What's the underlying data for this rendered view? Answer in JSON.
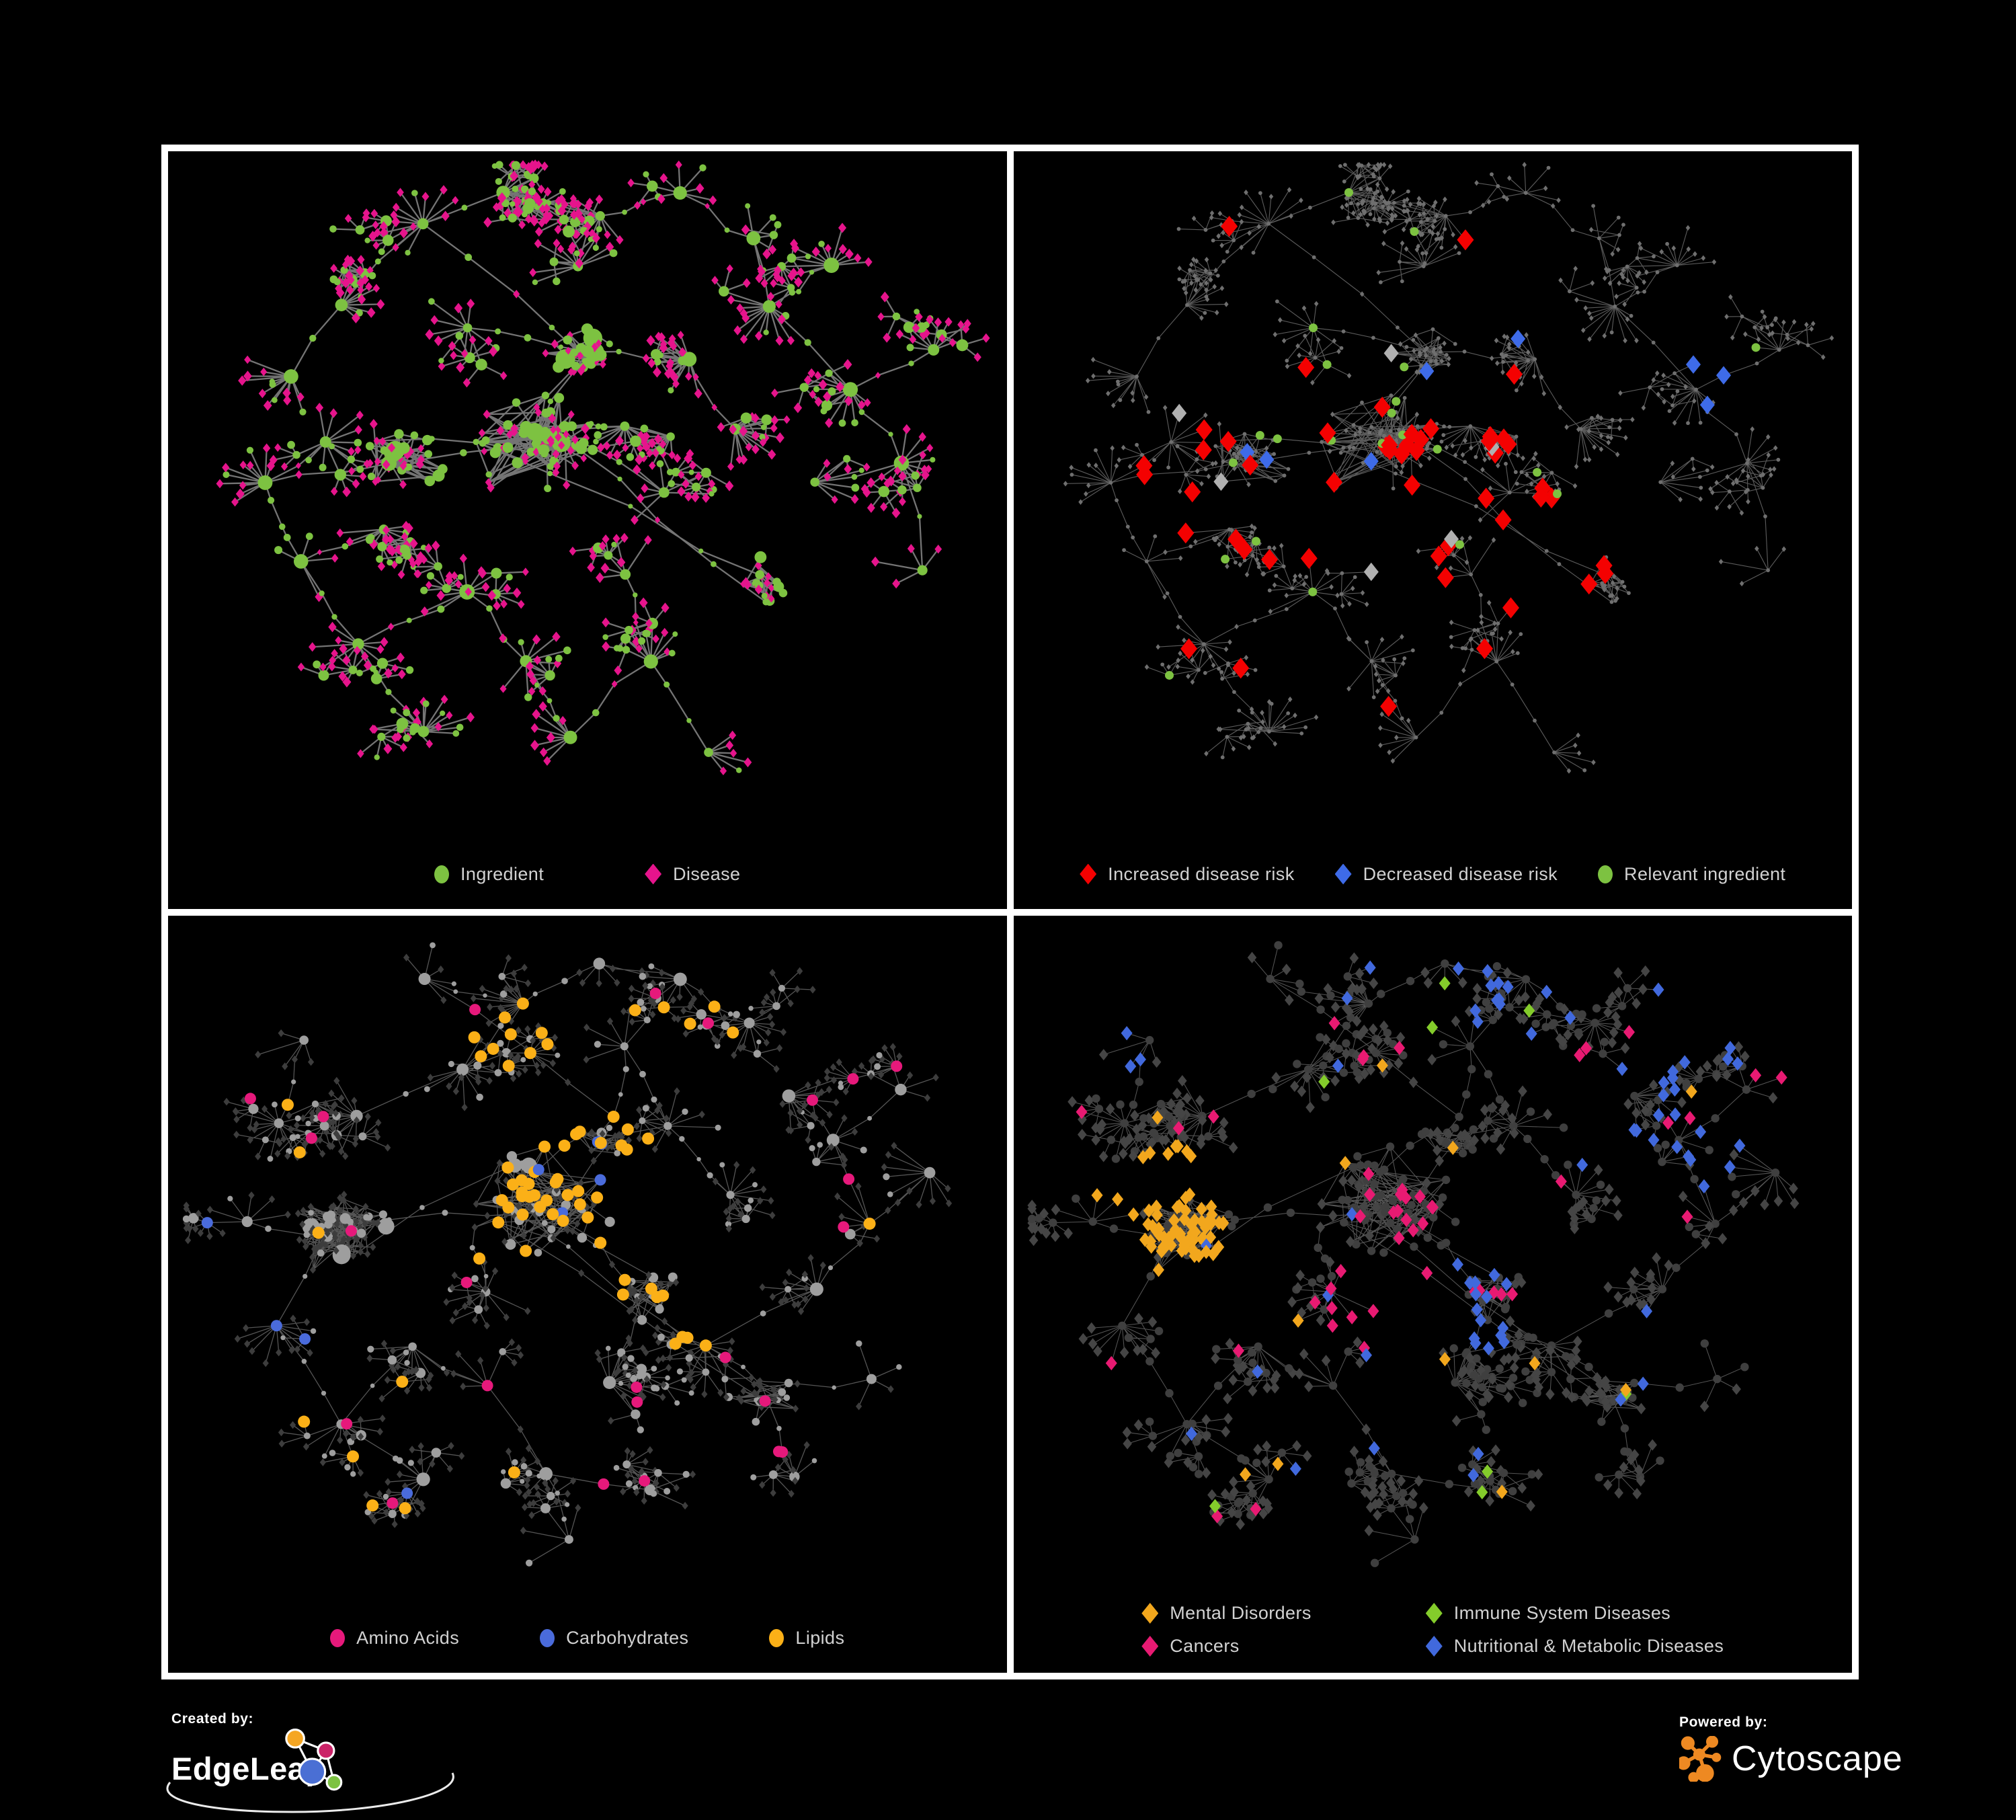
{
  "page": {
    "background": "#000000",
    "frame": "#ffffff",
    "legend_text": "#d2d2d2"
  },
  "panels": [
    {
      "id": "ingredient-disease",
      "legend": [
        {
          "label": "Ingredient",
          "shape": "circle",
          "color": "#7dc241"
        },
        {
          "label": "Disease",
          "shape": "diamond",
          "color": "#e6148c"
        }
      ],
      "legend_layout": "row",
      "legend_gap": 150,
      "row": 0,
      "paint": {
        "edge": "#7a7a7a",
        "edge_width": 2.3,
        "edge_opacity": 0.95,
        "circle": {
          "base": "#7dc241"
        },
        "diamond": {
          "base": "#e6148c"
        },
        "seed": 11,
        "rules": []
      }
    },
    {
      "id": "disease-risk",
      "legend": [
        {
          "label": "Increased disease risk",
          "shape": "diamond",
          "color": "#f40101"
        },
        {
          "label": "Decreased disease risk",
          "shape": "diamond",
          "color": "#3e6be8"
        },
        {
          "label": "Relevant ingredient",
          "shape": "circle",
          "color": "#7dc241"
        }
      ],
      "legend_layout": "row",
      "legend_gap": 60,
      "row": 0,
      "neutral_highlight_color": "#b0b0b0",
      "paint": {
        "edge": "#787878",
        "edge_width": 1.15,
        "edge_opacity": 0.75,
        "circle": {
          "base": "#6f6f6f",
          "fixed_size": 2.9
        },
        "diamond": {
          "base": "#6f6f6f",
          "size": 3.3
        },
        "seed": 101,
        "rules": [
          {
            "target": "diamond",
            "color": "#f40101",
            "size": 12.5,
            "zones": [
              [
                0.45,
                0.45,
                0.2
              ],
              [
                0.27,
                0.45,
                0.13
              ],
              [
                0.6,
                0.55,
                0.13
              ]
            ],
            "p_in": 0.2,
            "p_out": 0.02
          },
          {
            "target": "diamond",
            "color": "#3e6be8",
            "size": 11,
            "zones": [
              [
                0.45,
                0.45,
                0.18
              ],
              [
                0.27,
                0.45,
                0.13
              ]
            ],
            "p_in": 0.06,
            "p_out": 0.004,
            "force_zone": [
              0.8,
              0.3,
              0.87,
              0.38
            ],
            "force_p": 0.5
          },
          {
            "target": "diamond",
            "color": "#b0b0b0",
            "size": 11,
            "zones": [
              [
                0.45,
                0.45,
                0.2
              ],
              [
                0.27,
                0.45,
                0.13
              ],
              [
                0.6,
                0.55,
                0.13
              ]
            ],
            "p_in": 0.05,
            "p_out": 0.004
          },
          {
            "target": "circle",
            "color": "#7dc241",
            "size": 6.5,
            "zones": [
              [
                0.42,
                0.42,
                0.22
              ],
              [
                0.27,
                0.45,
                0.15
              ],
              [
                0.6,
                0.55,
                0.15
              ],
              [
                0.49,
                0.29,
                0.12
              ]
            ],
            "p_in": 0.13,
            "p_out": 0.015
          }
        ]
      }
    },
    {
      "id": "macronutrients",
      "legend": [
        {
          "label": "Amino Acids",
          "shape": "circle",
          "color": "#e6197b"
        },
        {
          "label": "Carbohydrates",
          "shape": "circle",
          "color": "#4a6bdb"
        },
        {
          "label": "Lipids",
          "shape": "circle",
          "color": "#fbb017"
        }
      ],
      "legend_layout": "row",
      "legend_gap": 120,
      "row": 1,
      "paint": {
        "edge": "#8d8d8d",
        "edge_width": 1.3,
        "edge_opacity": 0.6,
        "circle": {
          "base": "#9e9e9e",
          "scale": 0.9
        },
        "diamond": {
          "base": "#3d3d3d",
          "size": 4.6
        },
        "seed": 202,
        "rules": [
          {
            "target": "circle",
            "color": "#fbb017",
            "size": 9,
            "zones": [
              [
                0.5,
                0.38,
                0.1
              ],
              [
                0.45,
                0.47,
                0.1
              ],
              [
                0.44,
                0.2,
                0.09
              ],
              [
                0.6,
                0.56,
                0.08
              ]
            ],
            "p_in": 0.5,
            "p_out": 0.05
          },
          {
            "target": "circle",
            "color": "#4a6bdb",
            "size": 8.5,
            "zones": [
              [
                0.5,
                0.39,
                0.07
              ]
            ],
            "p_in": 0.3,
            "p_out": 0.018
          },
          {
            "target": "circle",
            "color": "#e6197b",
            "size": 8.5,
            "zones": [
              [
                0.6,
                0.68,
                0.18
              ],
              [
                0.3,
                0.72,
                0.15
              ],
              [
                0.72,
                0.52,
                0.1
              ]
            ],
            "p_in": 0.12,
            "p_out": 0.04
          }
        ]
      }
    },
    {
      "id": "disease-categories",
      "legend": [
        {
          "label": "Mental Disorders",
          "shape": "diamond",
          "color": "#f2a71d"
        },
        {
          "label": "Immune System Diseases",
          "shape": "diamond",
          "color": "#84cc2b"
        },
        {
          "label": "Cancers",
          "shape": "diamond",
          "color": "#e81a72"
        },
        {
          "label": "Nutritional & Metabolic Diseases",
          "shape": "diamond",
          "color": "#4169dd"
        }
      ],
      "legend_layout": "grid",
      "row": 1,
      "paint": {
        "edge": "#6a6a6a",
        "edge_width": 1.05,
        "edge_opacity": 0.8,
        "circle": {
          "base": "#3f3f3f",
          "fixed_size": 6.2
        },
        "diamond": {
          "base": "#454545",
          "size": 6.8
        },
        "seed": 303,
        "rules": [
          {
            "target": "diamond",
            "color": "#f2a71d",
            "size": 8.5,
            "zones": [
              [
                0.2,
                0.46,
                0.13
              ]
            ],
            "p_in": 0.85,
            "p_out": 0.022
          },
          {
            "target": "diamond",
            "color": "#4169dd",
            "size": 8.5,
            "zones": [
              [
                0.57,
                0.55,
                0.08
              ],
              [
                0.79,
                0.3,
                0.13
              ],
              [
                0.62,
                0.08,
                0.09
              ],
              [
                0.12,
                0.16,
                0.1
              ]
            ],
            "p_in": 0.45,
            "p_out": 0.05
          },
          {
            "target": "diamond",
            "color": "#e81a72",
            "size": 8.5,
            "zones": [
              [
                0.47,
                0.52,
                0.13
              ],
              [
                0.88,
                0.27,
                0.07
              ]
            ],
            "p_in": 0.5,
            "p_out": 0.03
          },
          {
            "target": "diamond",
            "color": "#84cc2b",
            "size": 8.5,
            "zones": [],
            "p_in": 0,
            "p_out": 0.015
          }
        ]
      }
    }
  ],
  "networks": {
    "rows": [
      {
        "seed": 42,
        "leaf_diamond_p": 0.78,
        "sub_fan_p": 0.15,
        "cores": [
          {
            "x": 0.44,
            "y": 0.42,
            "r": 0.08,
            "n": 80,
            "dp": 0.5
          },
          {
            "x": 0.27,
            "y": 0.44,
            "r": 0.055,
            "n": 42,
            "dp": 0.5
          },
          {
            "x": 0.49,
            "y": 0.29,
            "r": 0.05,
            "n": 34,
            "dp": 0.35
          },
          {
            "x": 0.72,
            "y": 0.63,
            "r": 0.045,
            "n": 24,
            "dp": 0.6
          }
        ],
        "hubs": [
          [
            0.3,
            0.1
          ],
          [
            0.4,
            0.06
          ],
          [
            0.52,
            0.08
          ],
          [
            0.62,
            0.05
          ],
          [
            0.7,
            0.12
          ],
          [
            0.48,
            0.17
          ],
          [
            0.35,
            0.25
          ],
          [
            0.2,
            0.22
          ],
          [
            0.13,
            0.32
          ],
          [
            0.1,
            0.48
          ],
          [
            0.15,
            0.6
          ],
          [
            0.22,
            0.72
          ],
          [
            0.3,
            0.85
          ],
          [
            0.35,
            0.65
          ],
          [
            0.42,
            0.75
          ],
          [
            0.48,
            0.86
          ],
          [
            0.58,
            0.75
          ],
          [
            0.55,
            0.62
          ],
          [
            0.63,
            0.3
          ],
          [
            0.72,
            0.22
          ],
          [
            0.8,
            0.17
          ],
          [
            0.83,
            0.34
          ],
          [
            0.92,
            0.28
          ],
          [
            0.88,
            0.45
          ],
          [
            0.78,
            0.48
          ],
          [
            0.6,
            0.5
          ],
          [
            0.25,
            0.55
          ],
          [
            0.65,
            0.88
          ],
          [
            0.18,
            0.42
          ],
          [
            0.55,
            0.4
          ],
          [
            0.68,
            0.4
          ],
          [
            0.9,
            0.6
          ]
        ]
      },
      {
        "seed": 7,
        "leaf_diamond_p": 0.8,
        "sub_fan_p": 0.15,
        "cores": [
          {
            "x": 0.44,
            "y": 0.41,
            "r": 0.09,
            "n": 85,
            "dp": 0.55
          },
          {
            "x": 0.2,
            "y": 0.46,
            "r": 0.065,
            "n": 95,
            "dp": 0.75
          },
          {
            "x": 0.57,
            "y": 0.55,
            "r": 0.045,
            "n": 30,
            "dp": 0.6
          },
          {
            "x": 0.72,
            "y": 0.7,
            "r": 0.05,
            "n": 26,
            "dp": 0.6
          },
          {
            "x": 0.52,
            "y": 0.32,
            "r": 0.045,
            "n": 24,
            "dp": 0.45
          }
        ],
        "hubs": [
          [
            0.3,
            0.08
          ],
          [
            0.42,
            0.12
          ],
          [
            0.52,
            0.06
          ],
          [
            0.62,
            0.08
          ],
          [
            0.7,
            0.15
          ],
          [
            0.55,
            0.18
          ],
          [
            0.35,
            0.22
          ],
          [
            0.22,
            0.28
          ],
          [
            0.12,
            0.3
          ],
          [
            0.08,
            0.45
          ],
          [
            0.12,
            0.6
          ],
          [
            0.2,
            0.74
          ],
          [
            0.3,
            0.82
          ],
          [
            0.28,
            0.62
          ],
          [
            0.38,
            0.68
          ],
          [
            0.45,
            0.82
          ],
          [
            0.58,
            0.84
          ],
          [
            0.52,
            0.68
          ],
          [
            0.65,
            0.62
          ],
          [
            0.78,
            0.55
          ],
          [
            0.85,
            0.45
          ],
          [
            0.8,
            0.33
          ],
          [
            0.88,
            0.25
          ],
          [
            0.75,
            0.25
          ],
          [
            0.92,
            0.38
          ],
          [
            0.85,
            0.68
          ],
          [
            0.75,
            0.82
          ],
          [
            0.38,
            0.54
          ],
          [
            0.6,
            0.3
          ],
          [
            0.68,
            0.4
          ],
          [
            0.48,
            0.92
          ],
          [
            0.15,
            0.18
          ]
        ]
      }
    ]
  },
  "footer": {
    "created_by": {
      "label": "Created by:",
      "brand": "EdgeLeap",
      "logo_colors": [
        "#f5a623",
        "#cb2368",
        "#4a6fd4",
        "#7dc242"
      ]
    },
    "powered_by": {
      "label": "Powered by:",
      "brand": "Cytoscape",
      "logo_color": "#ee8922"
    }
  }
}
